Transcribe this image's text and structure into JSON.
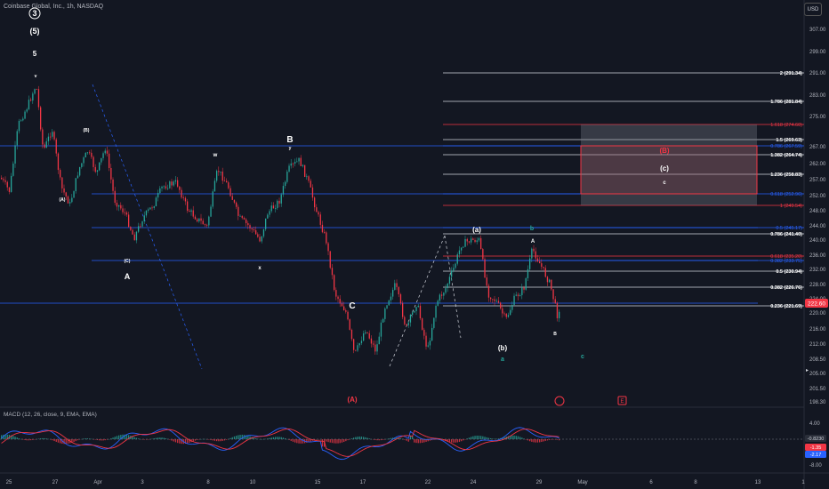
{
  "header": {
    "title": "Coinbase Global, Inc., 1h, NASDAQ",
    "currency_button": "USD"
  },
  "macd": {
    "label": "MACD (12, 26, close, 9, EMA, EMA)",
    "axis": [
      "4.00",
      "-4.00",
      "-8.00"
    ],
    "badges": [
      {
        "text": "-0.8230",
        "color": "#d1d4dc",
        "bg": "#2a2e39"
      },
      {
        "text": "-1.35",
        "color": "#ffffff",
        "bg": "#f23645"
      },
      {
        "text": "-2.17",
        "color": "#ffffff",
        "bg": "#2962ff"
      }
    ]
  },
  "price_axis": [
    "307.00",
    "299.00",
    "291.00",
    "283.00",
    "275.00",
    "267.00",
    "262.00",
    "257.00",
    "252.00",
    "248.00",
    "244.00",
    "240.00",
    "236.00",
    "232.00",
    "228.00",
    "224.00",
    "220.00",
    "216.00",
    "212.00",
    "208.50",
    "205.00",
    "201.50",
    "198.30"
  ],
  "current_price": {
    "text": "222.60",
    "color": "#f23645"
  },
  "time_axis": [
    "25",
    "27",
    "Apr",
    "3",
    "8",
    "10",
    "15",
    "17",
    "22",
    "24",
    "29",
    "May",
    "6",
    "8",
    "13",
    "1"
  ],
  "fib_levels": [
    {
      "text": "2 (291.34)",
      "color": "#ffffff"
    },
    {
      "text": "1.786 (281.84)",
      "color": "#ffffff"
    },
    {
      "text": "1.618 (274.60)",
      "color": "#f23645"
    },
    {
      "text": "1.5 (269.63)",
      "color": "#ffffff"
    },
    {
      "text": "0.786 (267.59)",
      "color": "#2962ff"
    },
    {
      "text": "1.382 (264.74)",
      "color": "#ffffff"
    },
    {
      "text": "1.236 (258.83)",
      "color": "#ffffff"
    },
    {
      "text": "0.618 (252.96)",
      "color": "#2962ff"
    },
    {
      "text": "1 (249.54)",
      "color": "#f23645"
    },
    {
      "text": "0.5 (245.17)",
      "color": "#2962ff"
    },
    {
      "text": "0.786 (241.40)",
      "color": "#ffffff"
    },
    {
      "text": "0.618 (235.20)",
      "color": "#f23645"
    },
    {
      "text": "0.382 (233.75)",
      "color": "#2962ff"
    },
    {
      "text": "0.5 (230.94)",
      "color": "#ffffff"
    },
    {
      "text": "0.382 (226.76)",
      "color": "#ffffff"
    },
    {
      "text": "0.236 (221.69)",
      "color": "#ffffff"
    }
  ],
  "wave_labels": [
    {
      "text": "3",
      "color": "#ffffff"
    },
    {
      "text": "(5)",
      "color": "#ffffff"
    },
    {
      "text": "5",
      "color": "#ffffff"
    },
    {
      "text": "v",
      "color": "#ffffff"
    },
    {
      "text": "(B)",
      "color": "#ffffff"
    },
    {
      "text": "(A)",
      "color": "#ffffff"
    },
    {
      "text": "(C)",
      "color": "#ffffff"
    },
    {
      "text": "A",
      "color": "#ffffff"
    },
    {
      "text": "w",
      "color": "#ffffff"
    },
    {
      "text": "x",
      "color": "#ffffff"
    },
    {
      "text": "B",
      "color": "#ffffff"
    },
    {
      "text": "y",
      "color": "#ffffff"
    },
    {
      "text": "C",
      "color": "#ffffff"
    },
    {
      "text": "(A)",
      "color": "#f23645"
    },
    {
      "text": "(a)",
      "color": "#ffffff"
    },
    {
      "text": "(b)",
      "color": "#ffffff"
    },
    {
      "text": "a",
      "color": "#26a69a"
    },
    {
      "text": "b",
      "color": "#26a69a"
    },
    {
      "text": "A",
      "color": "#ffffff"
    },
    {
      "text": "B",
      "color": "#ffffff"
    },
    {
      "text": "c",
      "color": "#26a69a"
    },
    {
      "text": "(B)",
      "color": "#f23645"
    },
    {
      "text": "(c)",
      "color": "#ffffff"
    },
    {
      "text": "c",
      "color": "#ffffff"
    }
  ],
  "markers": {
    "flag": "E"
  },
  "colors": {
    "up": "#26a69a",
    "down": "#f23645",
    "blue": "#2962ff",
    "background": "#131722"
  }
}
